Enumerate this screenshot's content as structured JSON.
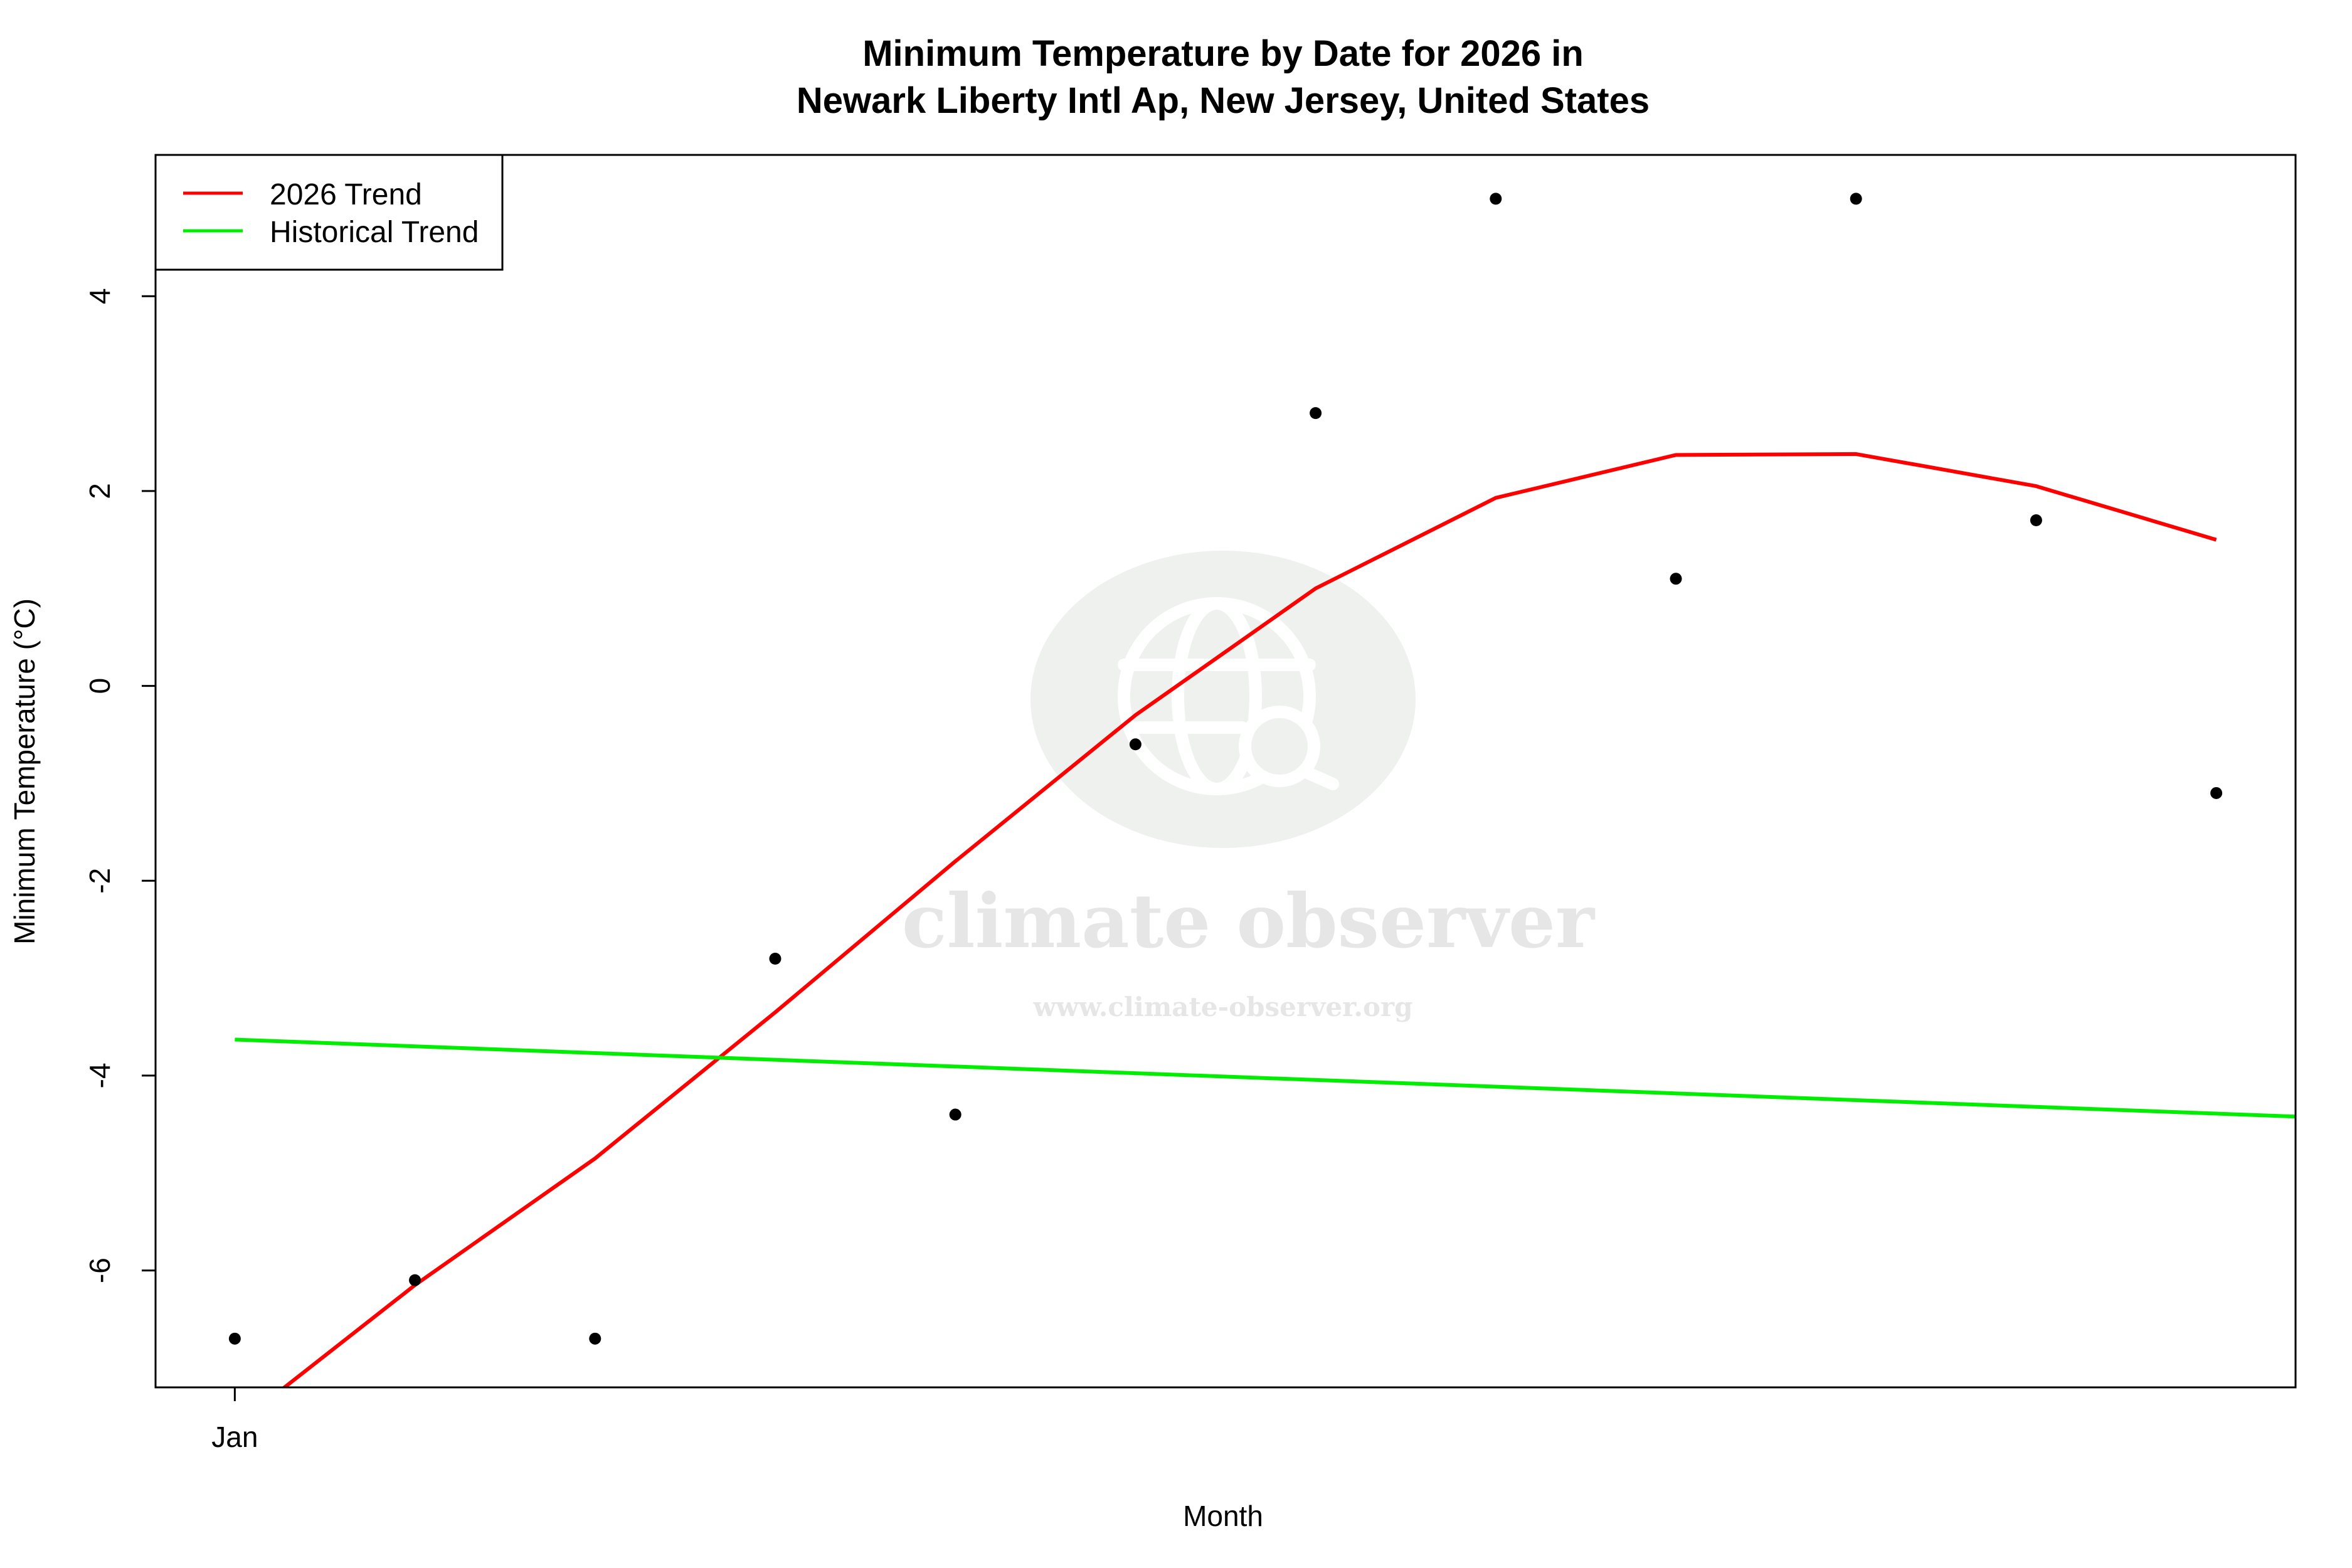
{
  "chart_data": {
    "type": "line",
    "title_line1": "Minimum Temperature by Date for 2026 in",
    "title_line2": "Newark Liberty Intl Ap, New Jersey, United States",
    "xlabel": "Month",
    "ylabel": "Minimum Temperature (°C)",
    "x_ticks": [
      {
        "x": 1,
        "label": "Jan"
      }
    ],
    "y_ticks": [
      -6,
      -4,
      -2,
      0,
      2,
      4
    ],
    "xlim": [
      0.56,
      12.44
    ],
    "ylim": [
      -7.2,
      5.45
    ],
    "points": {
      "x": [
        1,
        2,
        3,
        4,
        5,
        6,
        7,
        8,
        9,
        10,
        11,
        12
      ],
      "y": [
        -6.7,
        -6.1,
        -6.7,
        -2.8,
        -4.4,
        -0.6,
        2.8,
        5.0,
        1.1,
        5.0,
        1.7,
        -1.1
      ]
    },
    "series": [
      {
        "name": "2026 Trend",
        "color": "#ff0000",
        "x": [
          1,
          2,
          3,
          4,
          5,
          6,
          7,
          8,
          9,
          10,
          11,
          12
        ],
        "y": [
          -7.6,
          -6.15,
          -4.85,
          -3.35,
          -1.8,
          -0.3,
          1.0,
          1.93,
          2.37,
          2.38,
          2.05,
          1.5
        ]
      },
      {
        "name": "Historical Trend",
        "color": "#00ee00",
        "x": [
          1,
          12.44
        ],
        "y": [
          -3.63,
          -4.42
        ]
      }
    ],
    "legend_position": "top-left",
    "grid": false
  },
  "watermark": {
    "name": "climate observer",
    "url": "www.climate-observer.org"
  }
}
